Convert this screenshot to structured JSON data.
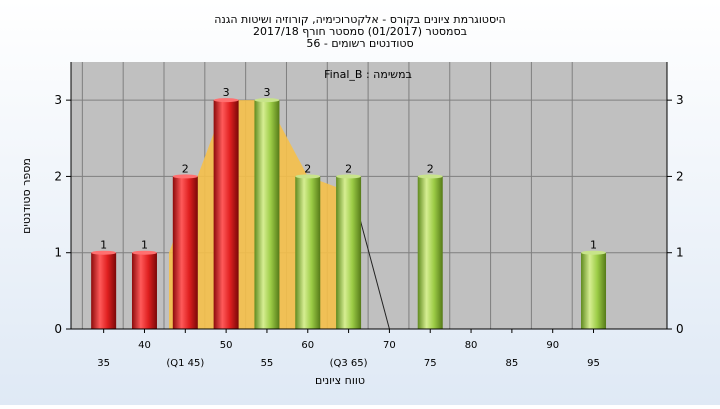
{
  "chart_data": {
    "type": "bar",
    "title_lines": [
      "היסטוגרמת ציונים בקורס - אלקטרוכימיה, קורוזיה ושיטות הגנה",
      "בסמסטר  (01/2017)  סמסטר חורף  2017/18",
      "סטודנטים רשומים - 56"
    ],
    "annotation": "Final_B : במשימה",
    "xlabel": "טווח ציונים",
    "ylabel": "מספר סטודנטים",
    "ylim": [
      0,
      3.5
    ],
    "yticks": [
      0,
      1,
      2,
      3
    ],
    "x_range": [
      31,
      104
    ],
    "x_ticks": [
      {
        "x": 35,
        "label": "35",
        "row": 2
      },
      {
        "x": 40,
        "label": "40",
        "row": 1
      },
      {
        "x": 45,
        "label": "(Q1 45)",
        "row": 2
      },
      {
        "x": 50,
        "label": "50",
        "row": 1
      },
      {
        "x": 55,
        "label": "55",
        "row": 2
      },
      {
        "x": 60,
        "label": "60",
        "row": 1
      },
      {
        "x": 65,
        "label": "(Q3 65)",
        "row": 2
      },
      {
        "x": 70,
        "label": "70",
        "row": 1
      },
      {
        "x": 75,
        "label": "75",
        "row": 2
      },
      {
        "x": 80,
        "label": "80",
        "row": 1
      },
      {
        "x": 85,
        "label": "85",
        "row": 2
      },
      {
        "x": 90,
        "label": "90",
        "row": 1
      },
      {
        "x": 95,
        "label": "95",
        "row": 2
      }
    ],
    "bars": [
      {
        "x": 35,
        "value": 1,
        "color": "red"
      },
      {
        "x": 40,
        "value": 1,
        "color": "red"
      },
      {
        "x": 45,
        "value": 2,
        "color": "red"
      },
      {
        "x": 50,
        "value": 3,
        "color": "red"
      },
      {
        "x": 55,
        "value": 3,
        "color": "green"
      },
      {
        "x": 60,
        "value": 2,
        "color": "green"
      },
      {
        "x": 65,
        "value": 2,
        "color": "green"
      },
      {
        "x": 75,
        "value": 2,
        "color": "green"
      },
      {
        "x": 95,
        "value": 1,
        "color": "green"
      }
    ],
    "distribution_area": {
      "x": [
        43,
        50,
        55,
        60,
        65
      ],
      "y": [
        1.0,
        3.0,
        3.0,
        2.0,
        1.8
      ],
      "color": "#f5c04a"
    },
    "distribution_line": {
      "x": [
        65,
        70
      ],
      "y": [
        2.0,
        0.0
      ]
    },
    "grid": true,
    "colors": {
      "plot_bg": "#c0c0c0",
      "red_bar": "#e02020",
      "green_bar": "#9ccc46",
      "grid": "#7f7f7f",
      "text": "#000000"
    }
  }
}
